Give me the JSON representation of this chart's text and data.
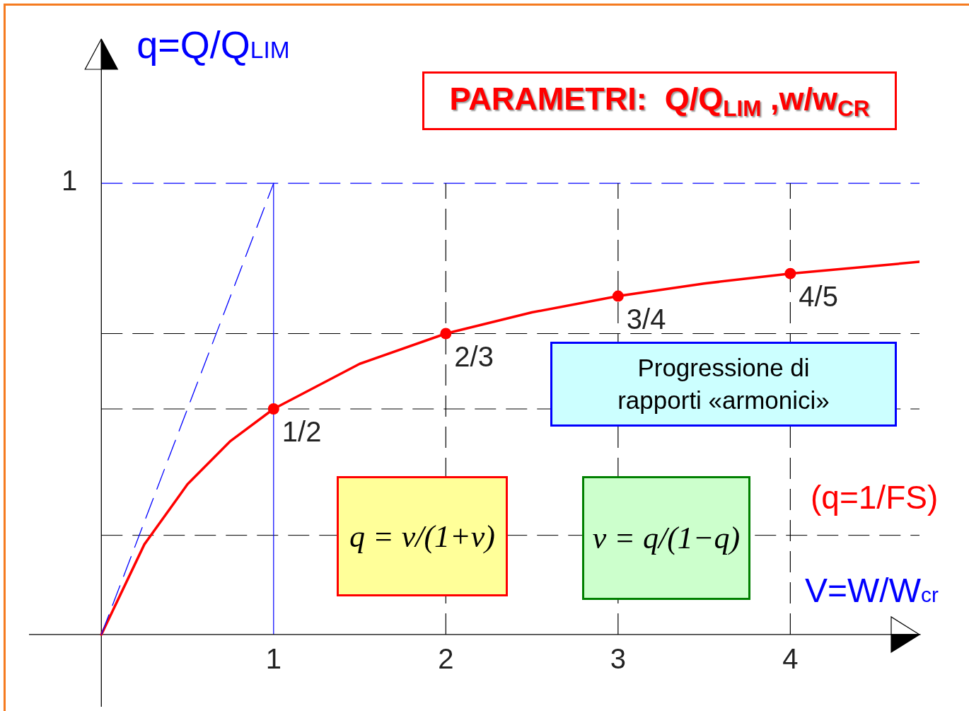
{
  "chart_data": {
    "type": "line",
    "title": "PARAMETRI:  Q/Q$_{LIM}$ ,w/w$_{CR}$",
    "xlabel": "V=W/W$_{cr}$",
    "ylabel": "q=Q/Q$_{LIM}$",
    "xlim": [
      -0.42,
      4.75
    ],
    "ylim": [
      -0.16,
      1.32
    ],
    "xticks": [
      1,
      2,
      3,
      4
    ],
    "yticks": [
      {
        "value": 0.22,
        "label": null
      },
      {
        "value": 0.5,
        "label": null
      },
      {
        "value": 0.667,
        "label": null
      },
      {
        "value": 1,
        "label": null
      }
    ],
    "tick_labels": "x",
    "grid": "y",
    "series": [
      {
        "color": "#ff0000",
        "x": [
          0,
          0.25,
          0.5,
          0.75,
          1,
          1.5,
          2,
          2.5,
          3,
          3.5,
          4,
          4.75
        ],
        "values": [
          0,
          0.2,
          0.333,
          0.429,
          0.5,
          0.6,
          0.667,
          0.714,
          0.75,
          0.778,
          0.8,
          0.826
        ]
      },
      {
        "type": "scatter",
        "color": "#ff0000",
        "marker": "circle",
        "x": [
          1,
          2,
          3,
          4
        ],
        "values": [
          0.5,
          0.667,
          0.75,
          0.8
        ],
        "value_labels": [
          "1/2",
          "2/3",
          "3/4",
          "4/5"
        ]
      },
      {
        "color": "#0000ff",
        "line_style": "dashed",
        "x": [
          0,
          1
        ],
        "values": [
          0,
          1
        ]
      }
    ],
    "ref_lines": [
      {
        "axis": "y",
        "value": 1,
        "color": "#0000ff",
        "line_style": "dashed"
      },
      {
        "axis": "x",
        "value": 1,
        "color": "#0000ff",
        "line_style": "solid"
      },
      {
        "axis": "x",
        "value": 2,
        "color": "#000000",
        "line_style": "dashed"
      },
      {
        "axis": "x",
        "value": 3,
        "color": "#000000",
        "line_style": "dashed"
      },
      {
        "axis": "x",
        "value": 4,
        "color": "#000000",
        "line_style": "dashed"
      }
    ],
    "annotations": [
      "Progressione di rapporti «armonici»",
      "q = v/(1+v)",
      "v = q/(1−q)",
      "(q=1/FS)",
      "1"
    ]
  }
}
